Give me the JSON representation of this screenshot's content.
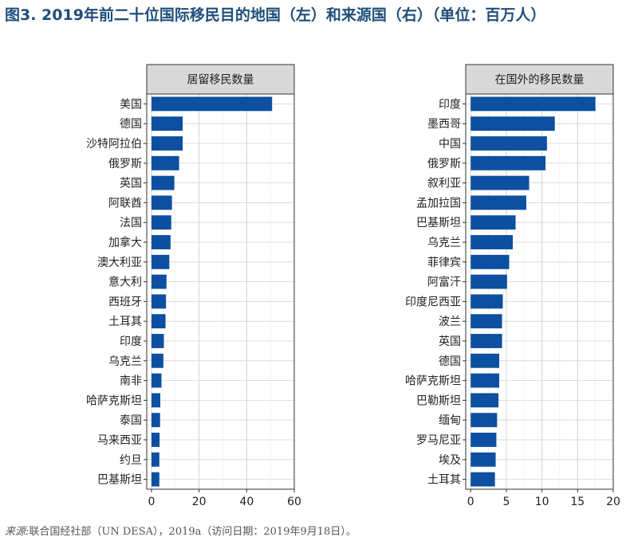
{
  "figure_title": "图3. 2019年前二十位国际移民目的地国（左）和来源国（右）（单位：百万人）",
  "source": {
    "label": "来源:",
    "text": "联合国经社部（UN DESA），2019a（访问日期：2019年9月18日）。"
  },
  "colors": {
    "bar": "#0d4fa0",
    "strip": "#d9d9d9",
    "grid": "#d3d3d3"
  },
  "chart_data": [
    {
      "type": "bar",
      "orientation": "horizontal",
      "title": "居留移民数量",
      "xlim": [
        -2,
        60
      ],
      "xticks": [
        0,
        20,
        40,
        60
      ],
      "grid": true,
      "categories": [
        "美国",
        "德国",
        "沙特阿拉伯",
        "俄罗斯",
        "英国",
        "阿联酋",
        "法国",
        "加拿大",
        "澳大利亚",
        "意大利",
        "西班牙",
        "土耳其",
        "印度",
        "乌克兰",
        "南非",
        "哈萨克斯坦",
        "泰国",
        "马来西亚",
        "约旦",
        "巴基斯坦"
      ],
      "values": [
        50.7,
        13.1,
        13.1,
        11.6,
        9.6,
        8.6,
        8.3,
        8.0,
        7.5,
        6.3,
        6.1,
        5.9,
        5.2,
        5.0,
        4.2,
        3.7,
        3.6,
        3.4,
        3.3,
        3.3
      ]
    },
    {
      "type": "bar",
      "orientation": "horizontal",
      "title": "在国外的移民数量",
      "xlim": [
        -0.7,
        20
      ],
      "xticks": [
        0,
        5,
        10,
        15,
        20
      ],
      "grid": true,
      "categories": [
        "印度",
        "墨西哥",
        "中国",
        "俄罗斯",
        "叙利亚",
        "孟加拉国",
        "巴基斯坦",
        "乌克兰",
        "菲律宾",
        "阿富汗",
        "印度尼西亚",
        "波兰",
        "英国",
        "德国",
        "哈萨克斯坦",
        "巴勒斯坦",
        "缅甸",
        "罗马尼亚",
        "埃及",
        "土耳其"
      ],
      "values": [
        17.5,
        11.8,
        10.7,
        10.5,
        8.2,
        7.8,
        6.3,
        5.9,
        5.4,
        5.1,
        4.5,
        4.4,
        4.4,
        4.0,
        4.0,
        3.9,
        3.7,
        3.6,
        3.5,
        3.4
      ]
    }
  ]
}
